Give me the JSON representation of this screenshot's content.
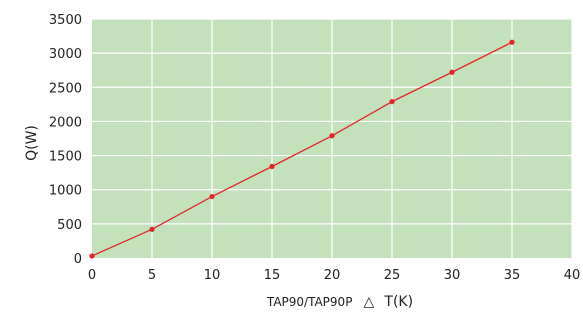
{
  "chart_data": {
    "type": "line",
    "xlabel_prefix": "TAP90/TAP90P",
    "xlabel_symbol": "△",
    "xlabel_suffix": "T(K)",
    "ylabel": "Q(W)",
    "xlim": [
      0,
      40
    ],
    "ylim": [
      0,
      3500
    ],
    "x_ticks": [
      0,
      5,
      10,
      15,
      20,
      25,
      30,
      35,
      40
    ],
    "y_ticks": [
      0,
      500,
      1000,
      1500,
      2000,
      2500,
      3000,
      3500
    ],
    "grid": true,
    "series": [
      {
        "x": [
          0,
          5,
          10,
          15,
          20,
          25,
          30,
          35
        ],
        "y": [
          30,
          420,
          900,
          1340,
          1790,
          2290,
          2720,
          3160
        ]
      }
    ],
    "colors": {
      "plot_bg": "#c3e2bb",
      "grid": "#ffffff",
      "line": "#e0262b",
      "marker": "#e0262b"
    }
  }
}
